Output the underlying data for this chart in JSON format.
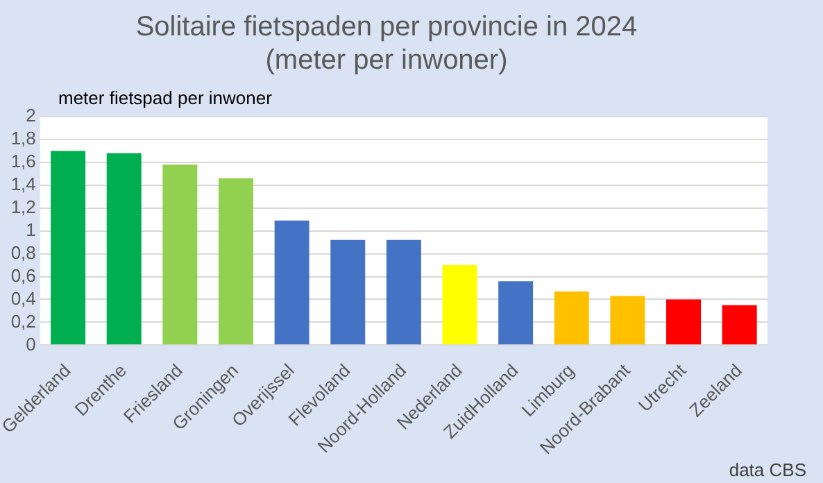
{
  "chart_data": {
    "type": "bar",
    "title": "Solitaire fietspaden per provincie in 2024\n(meter per inwoner)",
    "ylabel": "meter fietspad per inwoner",
    "categories": [
      "Gelderland",
      "Drenthe",
      "Friesland",
      "Groningen",
      "Overijssel",
      "Flevoland",
      "Noord-Holland",
      "Nederland",
      "ZuidHolland",
      "Limburg",
      "Noord-Brabant",
      "Utrecht",
      "Zeeland"
    ],
    "values": [
      1.7,
      1.68,
      1.58,
      1.46,
      1.09,
      0.92,
      0.92,
      0.7,
      0.56,
      0.47,
      0.43,
      0.4,
      0.35
    ],
    "colors": [
      "#00b050",
      "#00b050",
      "#92d050",
      "#92d050",
      "#4472c4",
      "#4472c4",
      "#4472c4",
      "#ffff00",
      "#4472c4",
      "#ffc000",
      "#ffc000",
      "#ff0000",
      "#ff0000"
    ],
    "ylim": [
      0,
      2
    ],
    "yticks": [
      0,
      {
        "value": 0.2,
        "label": "0,2"
      },
      {
        "value": 0.4,
        "label": "0,4"
      },
      {
        "value": 0.6,
        "label": "0,6"
      },
      {
        "value": 0.8,
        "label": "0,8"
      },
      1,
      {
        "value": 1.2,
        "label": "1,2"
      },
      {
        "value": 1.4,
        "label": "1,4"
      },
      {
        "value": 1.6,
        "label": "1,6"
      },
      {
        "value": 1.8,
        "label": "1,8"
      },
      2
    ],
    "grid": "y",
    "legend": false,
    "annotations": [
      "data CBS"
    ]
  }
}
